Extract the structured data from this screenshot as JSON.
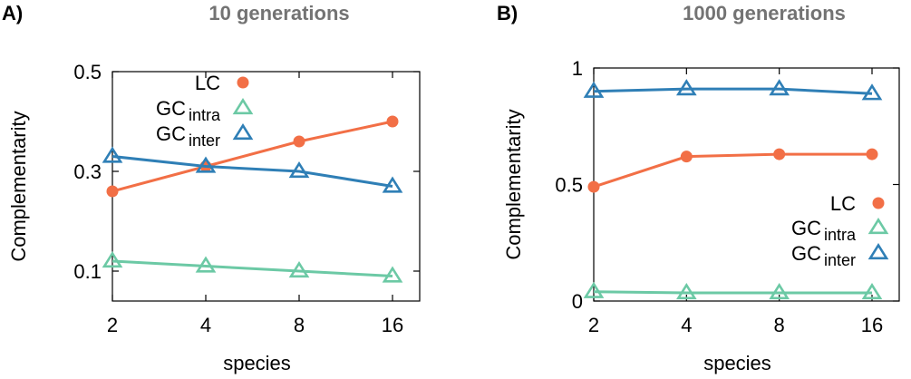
{
  "figure": {
    "panels": [
      {
        "letter": "A)",
        "title": "10 generations"
      },
      {
        "letter": "B)",
        "title": "1000 generations"
      }
    ]
  },
  "colors": {
    "LC": "#f26f46",
    "GC_intra": "#6cc9a5",
    "GC_inter": "#2f7fb6",
    "title_gray": "#737373"
  },
  "chart_data": [
    {
      "type": "line",
      "title": "10 generations",
      "xlabel": "species",
      "ylabel": "Complementarity",
      "x": [
        "2",
        "4",
        "8",
        "16"
      ],
      "yticks": [
        "0.1",
        "0.3",
        "0.5"
      ],
      "ylim": [
        0.04,
        0.5
      ],
      "legend_position": "top-right",
      "series": [
        {
          "name": "LC",
          "sub": "",
          "marker": "circle",
          "values": [
            0.26,
            0.31,
            0.36,
            0.4
          ]
        },
        {
          "name": "GC",
          "sub": "intra",
          "marker": "triangle",
          "values": [
            0.12,
            0.11,
            0.1,
            0.09
          ]
        },
        {
          "name": "GC",
          "sub": "inter",
          "marker": "triangle",
          "values": [
            0.33,
            0.31,
            0.3,
            0.27
          ]
        }
      ]
    },
    {
      "type": "line",
      "title": "1000 generations",
      "xlabel": "species",
      "ylabel": "Complementarity",
      "x": [
        "2",
        "4",
        "8",
        "16"
      ],
      "yticks": [
        "0",
        "0.5",
        "1"
      ],
      "ylim": [
        0,
        1
      ],
      "legend_position": "bottom-right",
      "series": [
        {
          "name": "LC",
          "sub": "",
          "marker": "circle",
          "values": [
            0.49,
            0.62,
            0.63,
            0.63
          ]
        },
        {
          "name": "GC",
          "sub": "intra",
          "marker": "triangle",
          "values": [
            0.04,
            0.035,
            0.035,
            0.035
          ]
        },
        {
          "name": "GC",
          "sub": "inter",
          "marker": "triangle",
          "values": [
            0.9,
            0.91,
            0.91,
            0.89
          ]
        }
      ]
    }
  ]
}
